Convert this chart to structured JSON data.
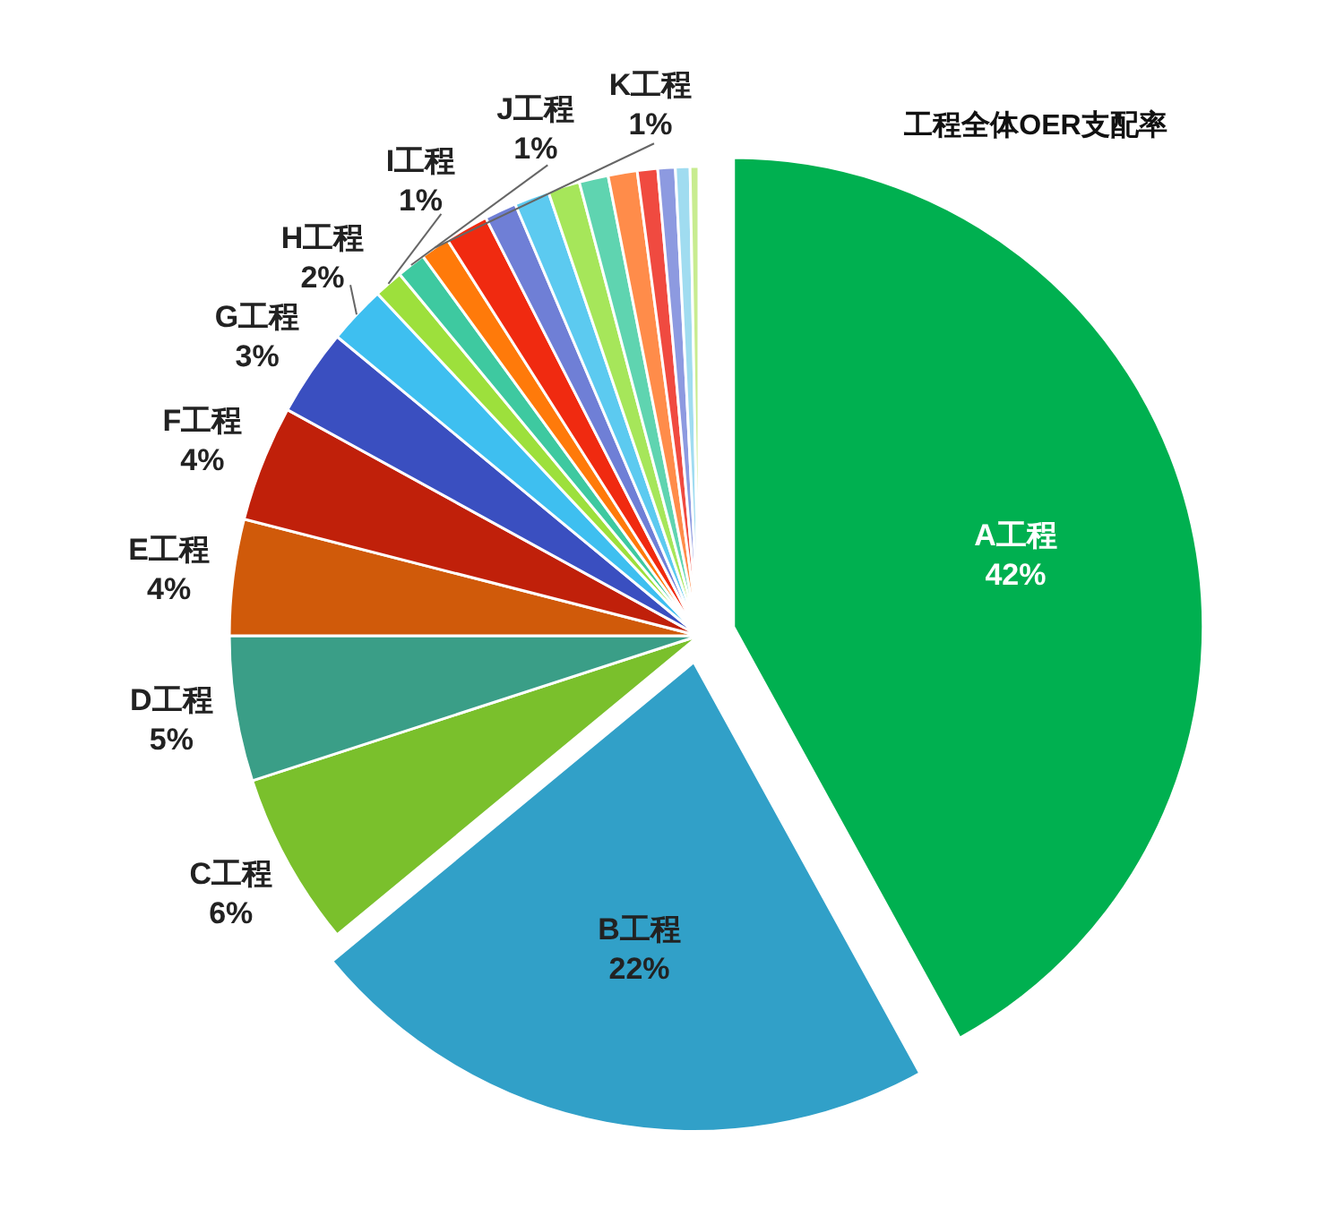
{
  "chart_data": {
    "type": "pie",
    "title": "工程全体OER支配率",
    "categories": [
      "A工程",
      "B工程",
      "C工程",
      "D工程",
      "E工程",
      "F工程",
      "G工程",
      "H工程",
      "I工程",
      "J工程",
      "K工程",
      null,
      null,
      null,
      null,
      null,
      null,
      null,
      null,
      null,
      null
    ],
    "values": [
      42,
      22,
      6,
      5,
      4,
      4,
      3,
      2,
      1,
      1,
      1,
      1.5,
      1.1,
      1.2,
      1.1,
      1.0,
      1.0,
      0.7,
      0.6,
      0.5,
      0.3
    ],
    "value_labels": [
      "42%",
      "22%",
      "6%",
      "5%",
      "4%",
      "4%",
      "3%",
      "2%",
      "1%",
      "1%",
      "1%",
      null,
      null,
      null,
      null,
      null,
      null,
      null,
      null,
      null,
      null
    ],
    "colors": [
      "#00b050",
      "#31a0c8",
      "#7ac02c",
      "#3a9e87",
      "#d05a0a",
      "#c0200a",
      "#3a4fc0",
      "#3ebff0",
      "#9de03c",
      "#3ec9a0",
      "#ff7a0a",
      "#f02a10",
      "#6f7fd6",
      "#5ccaf0",
      "#a6e65a",
      "#5fd4b0",
      "#ff8c4a",
      "#f04a40",
      "#8d9ae0",
      "#a0dcf0",
      "#c8ec90"
    ]
  }
}
